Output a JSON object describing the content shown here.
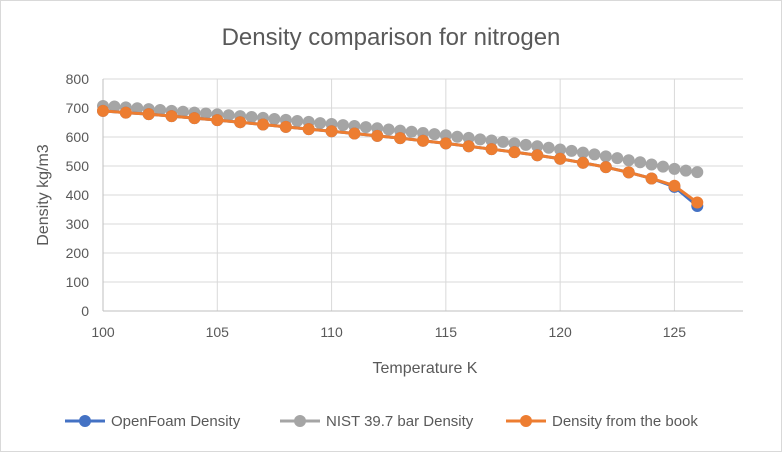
{
  "chart_data": {
    "type": "line",
    "title": "Density comparison for nitrogen",
    "xlabel": "Temperature K",
    "ylabel": "Density kg/m3",
    "xlim": [
      100,
      128
    ],
    "ylim": [
      0,
      800
    ],
    "x_ticks": [
      100,
      105,
      110,
      115,
      120,
      125
    ],
    "y_ticks": [
      0,
      100,
      200,
      300,
      400,
      500,
      600,
      700,
      800
    ],
    "grid": true,
    "legend_position": "bottom",
    "series": [
      {
        "name": "OpenFoam Density",
        "color": "#4472c4",
        "x": [
          100,
          101,
          102,
          103,
          104,
          105,
          106,
          107,
          108,
          109,
          110,
          111,
          112,
          113,
          114,
          115,
          116,
          117,
          118,
          119,
          120,
          121,
          122,
          123,
          124,
          125,
          126
        ],
        "values": [
          690,
          684,
          679,
          672,
          665,
          658,
          651,
          643,
          635,
          627,
          620,
          612,
          604,
          596,
          587,
          578,
          568,
          558,
          548,
          537,
          525,
          511,
          496,
          478,
          457,
          428,
          362
        ]
      },
      {
        "name": "NIST 39.7 bar Density",
        "color": "#a5a5a5",
        "x": [
          100,
          100.5,
          101,
          101.5,
          102,
          102.5,
          103,
          103.5,
          104,
          104.5,
          105,
          105.5,
          106,
          106.5,
          107,
          107.5,
          108,
          108.5,
          109,
          109.5,
          110,
          110.5,
          111,
          111.5,
          112,
          112.5,
          113,
          113.5,
          114,
          114.5,
          115,
          115.5,
          116,
          116.5,
          117,
          117.5,
          118,
          118.5,
          119,
          119.5,
          120,
          120.5,
          121,
          121.5,
          122,
          122.5,
          123,
          123.5,
          124,
          124.5,
          125,
          125.5,
          126
        ],
        "values": [
          707,
          705,
          702,
          699,
          696,
          693,
          690,
          687,
          684,
          681,
          678,
          675,
          672,
          669,
          666,
          662,
          659,
          655,
          652,
          648,
          645,
          641,
          638,
          634,
          630,
          626,
          622,
          618,
          614,
          610,
          606,
          601,
          597,
          592,
          588,
          583,
          578,
          573,
          568,
          563,
          557,
          552,
          546,
          540,
          533,
          527,
          520,
          513,
          505,
          498,
          490,
          484,
          479
        ]
      },
      {
        "name": "Density from the book",
        "color": "#ed7d31",
        "x": [
          100,
          101,
          102,
          103,
          104,
          105,
          106,
          107,
          108,
          109,
          110,
          111,
          112,
          113,
          114,
          115,
          116,
          117,
          118,
          119,
          120,
          121,
          122,
          123,
          124,
          125,
          126
        ],
        "values": [
          690,
          684,
          679,
          672,
          665,
          658,
          651,
          643,
          635,
          627,
          620,
          612,
          604,
          596,
          587,
          578,
          568,
          558,
          548,
          537,
          525,
          511,
          496,
          478,
          457,
          432,
          374
        ]
      }
    ]
  }
}
